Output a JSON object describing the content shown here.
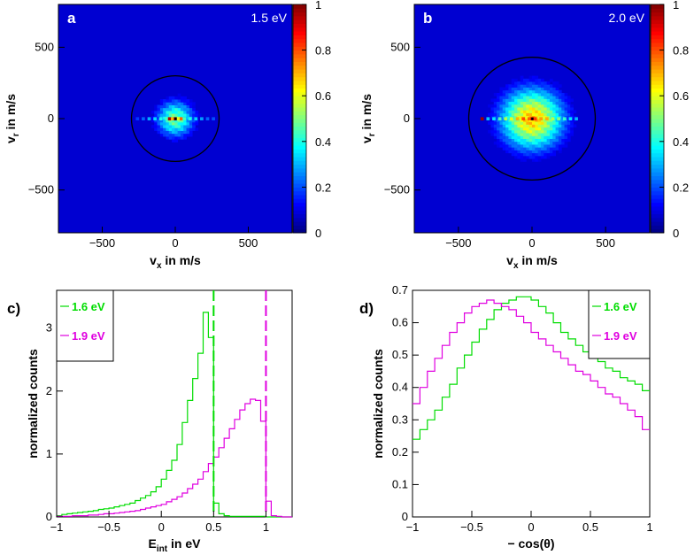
{
  "chart_data": [
    {
      "id": "a",
      "type": "heatmap",
      "panel_label": "a",
      "energy_label": "1.5 eV",
      "xlabel": "v",
      "xlabel_sub": "x",
      "xlabel_unit": " in m/s",
      "ylabel": "v",
      "ylabel_sub": "r",
      "ylabel_unit": " in m/s",
      "xlim": [
        -800,
        800
      ],
      "ylim": [
        -800,
        800
      ],
      "xticks": [
        {
          "v": -500,
          "label": "−500"
        },
        {
          "v": 0,
          "label": "0"
        },
        {
          "v": 500,
          "label": "500"
        }
      ],
      "yticks": [
        {
          "v": -500,
          "label": "−500"
        },
        {
          "v": 0,
          "label": "0"
        },
        {
          "v": 500,
          "label": "500"
        }
      ],
      "colorbar": {
        "min": 0,
        "max": 1,
        "ticks": [
          {
            "v": 0,
            "label": "0"
          },
          {
            "v": 0.2,
            "label": "0.2"
          },
          {
            "v": 0.4,
            "label": "0.4"
          },
          {
            "v": 0.6,
            "label": "0.6"
          },
          {
            "v": 0.8,
            "label": "0.8"
          },
          {
            "v": 1,
            "label": "1"
          }
        ]
      },
      "circle_radius": 300,
      "blob": {
        "sigma": 90,
        "peak": 0.48
      },
      "streak": [
        [
          -260,
          0.18
        ],
        [
          -220,
          0.22
        ],
        [
          -180,
          0.3
        ],
        [
          -140,
          0.34
        ],
        [
          -100,
          0.4
        ],
        [
          -60,
          0.45
        ],
        [
          -40,
          0.95
        ],
        [
          -20,
          0.7
        ],
        [
          0,
          1.0
        ],
        [
          20,
          0.6
        ],
        [
          40,
          0.78
        ],
        [
          60,
          0.45
        ],
        [
          100,
          0.4
        ],
        [
          140,
          0.33
        ],
        [
          180,
          0.28
        ],
        [
          220,
          0.22
        ],
        [
          260,
          0.2
        ]
      ]
    },
    {
      "id": "b",
      "type": "heatmap",
      "panel_label": "b",
      "energy_label": "2.0 eV",
      "xlabel": "v",
      "xlabel_sub": "x",
      "xlabel_unit": " in m/s",
      "ylabel": "v",
      "ylabel_sub": "r",
      "ylabel_unit": " in m/s",
      "xlim": [
        -800,
        800
      ],
      "ylim": [
        -800,
        800
      ],
      "xticks": [
        {
          "v": -500,
          "label": "−500"
        },
        {
          "v": 0,
          "label": "0"
        },
        {
          "v": 500,
          "label": "500"
        }
      ],
      "yticks": [
        {
          "v": -500,
          "label": "−500"
        },
        {
          "v": 0,
          "label": "0"
        },
        {
          "v": 500,
          "label": "500"
        }
      ],
      "colorbar": {
        "min": 0,
        "max": 1,
        "ticks": [
          {
            "v": 0,
            "label": "0"
          },
          {
            "v": 0.2,
            "label": "0.2"
          },
          {
            "v": 0.4,
            "label": "0.4"
          },
          {
            "v": 0.6,
            "label": "0.6"
          },
          {
            "v": 0.8,
            "label": "0.8"
          },
          {
            "v": 1,
            "label": "1"
          }
        ]
      },
      "circle_radius": 430,
      "blob": {
        "sigma": 150,
        "peak": 0.68
      },
      "streak": [
        [
          -340,
          0.97
        ],
        [
          -300,
          0.32
        ],
        [
          -260,
          0.35
        ],
        [
          -220,
          0.45
        ],
        [
          -180,
          0.55
        ],
        [
          -140,
          0.6
        ],
        [
          -100,
          0.7
        ],
        [
          -60,
          0.8
        ],
        [
          -20,
          0.78
        ],
        [
          0,
          0.9
        ],
        [
          20,
          0.82
        ],
        [
          60,
          0.72
        ],
        [
          100,
          0.7
        ],
        [
          140,
          0.55
        ],
        [
          180,
          0.5
        ],
        [
          220,
          0.42
        ],
        [
          260,
          0.35
        ],
        [
          300,
          0.3
        ]
      ]
    },
    {
      "id": "c",
      "type": "line",
      "panel_label": "c)",
      "xlabel": "E",
      "xlabel_sub": "int",
      "xlabel_unit": " in eV",
      "ylabel": "normalized counts",
      "xlim": [
        -1,
        1.25
      ],
      "ylim": [
        0,
        3.6
      ],
      "xticks": [
        {
          "v": -1,
          "label": "−1"
        },
        {
          "v": -0.5,
          "label": "−0.5"
        },
        {
          "v": 0,
          "label": "0"
        },
        {
          "v": 0.5,
          "label": "0.5"
        },
        {
          "v": 1,
          "label": "1"
        }
      ],
      "yticks": [
        {
          "v": 0,
          "label": "0"
        },
        {
          "v": 1,
          "label": "1"
        },
        {
          "v": 2,
          "label": "2"
        },
        {
          "v": 3,
          "label": "3"
        }
      ],
      "legend_position": "top-left",
      "series": [
        {
          "name": "1.6 eV",
          "color": "#00dd00",
          "step": 0.05,
          "x": [
            -1.0,
            -0.95,
            -0.9,
            -0.85,
            -0.8,
            -0.75,
            -0.7,
            -0.65,
            -0.6,
            -0.55,
            -0.5,
            -0.45,
            -0.4,
            -0.35,
            -0.3,
            -0.25,
            -0.2,
            -0.15,
            -0.1,
            -0.05,
            0.0,
            0.05,
            0.1,
            0.15,
            0.2,
            0.25,
            0.3,
            0.35,
            0.4,
            0.45,
            0.5,
            0.55,
            0.6,
            0.65,
            0.7,
            0.75,
            0.8,
            0.85,
            0.9,
            0.95,
            1.0,
            1.05,
            1.1,
            1.15,
            1.2
          ],
          "y": [
            0.02,
            0.04,
            0.05,
            0.06,
            0.07,
            0.08,
            0.09,
            0.1,
            0.12,
            0.13,
            0.14,
            0.16,
            0.18,
            0.2,
            0.22,
            0.26,
            0.3,
            0.34,
            0.4,
            0.48,
            0.6,
            0.74,
            0.9,
            1.15,
            1.5,
            1.85,
            2.2,
            2.6,
            3.25,
            2.85,
            0.22,
            0.05,
            0.02,
            0.01,
            0.01,
            0.01,
            0.01,
            0.01,
            0.01,
            0.01,
            0.0,
            0.0,
            0.0,
            0.0,
            0.0
          ]
        },
        {
          "name": "1.9 eV",
          "color": "#e000e0",
          "step": 0.05,
          "x": [
            -1.0,
            -0.95,
            -0.9,
            -0.85,
            -0.8,
            -0.75,
            -0.7,
            -0.65,
            -0.6,
            -0.55,
            -0.5,
            -0.45,
            -0.4,
            -0.35,
            -0.3,
            -0.25,
            -0.2,
            -0.15,
            -0.1,
            -0.05,
            0.0,
            0.05,
            0.1,
            0.15,
            0.2,
            0.25,
            0.3,
            0.35,
            0.4,
            0.45,
            0.5,
            0.55,
            0.6,
            0.65,
            0.7,
            0.75,
            0.8,
            0.85,
            0.9,
            0.95,
            1.0,
            1.05,
            1.1,
            1.15,
            1.2
          ],
          "y": [
            0.01,
            0.01,
            0.01,
            0.02,
            0.02,
            0.02,
            0.03,
            0.03,
            0.04,
            0.05,
            0.05,
            0.06,
            0.07,
            0.08,
            0.09,
            0.1,
            0.12,
            0.14,
            0.16,
            0.18,
            0.2,
            0.24,
            0.28,
            0.32,
            0.38,
            0.45,
            0.52,
            0.6,
            0.72,
            0.85,
            0.95,
            1.1,
            1.25,
            1.4,
            1.55,
            1.7,
            1.8,
            1.87,
            1.85,
            1.52,
            0.25,
            0.02,
            0.01,
            0.0,
            0.0
          ]
        }
      ],
      "vlines": [
        {
          "x": 0.5,
          "color": "#00dd00"
        },
        {
          "x": 1.0,
          "color": "#e000e0"
        }
      ]
    },
    {
      "id": "d",
      "type": "line",
      "panel_label": "d)",
      "xlabel": "− cos(θ)",
      "ylabel": "normalized counts",
      "xlim": [
        -1,
        1
      ],
      "ylim": [
        0,
        0.7
      ],
      "xticks": [
        {
          "v": -1,
          "label": "−1"
        },
        {
          "v": -0.5,
          "label": "−0.5"
        },
        {
          "v": 0,
          "label": "0"
        },
        {
          "v": 0.5,
          "label": "0.5"
        },
        {
          "v": 1,
          "label": "1"
        }
      ],
      "yticks": [
        {
          "v": 0,
          "label": "0"
        },
        {
          "v": 0.1,
          "label": "0.1"
        },
        {
          "v": 0.2,
          "label": "0.2"
        },
        {
          "v": 0.3,
          "label": "0.3"
        },
        {
          "v": 0.4,
          "label": "0.4"
        },
        {
          "v": 0.5,
          "label": "0.5"
        },
        {
          "v": 0.6,
          "label": "0.6"
        },
        {
          "v": 0.7,
          "label": "0.7"
        }
      ],
      "legend_position": "top-right",
      "series": [
        {
          "name": "1.6 eV",
          "color": "#00dd00",
          "step": 0.0625,
          "x": [
            -1.0,
            -0.9375,
            -0.875,
            -0.8125,
            -0.75,
            -0.6875,
            -0.625,
            -0.5625,
            -0.5,
            -0.4375,
            -0.375,
            -0.3125,
            -0.25,
            -0.1875,
            -0.125,
            -0.0625,
            0.0,
            0.0625,
            0.125,
            0.1875,
            0.25,
            0.3125,
            0.375,
            0.4375,
            0.5,
            0.5625,
            0.625,
            0.6875,
            0.75,
            0.8125,
            0.875,
            0.9375
          ],
          "y": [
            0.24,
            0.27,
            0.3,
            0.33,
            0.37,
            0.41,
            0.46,
            0.5,
            0.54,
            0.58,
            0.61,
            0.64,
            0.66,
            0.67,
            0.68,
            0.68,
            0.67,
            0.65,
            0.63,
            0.6,
            0.57,
            0.55,
            0.53,
            0.51,
            0.5,
            0.48,
            0.46,
            0.45,
            0.43,
            0.42,
            0.41,
            0.39
          ]
        },
        {
          "name": "1.9 eV",
          "color": "#e000e0",
          "step": 0.0625,
          "x": [
            -1.0,
            -0.9375,
            -0.875,
            -0.8125,
            -0.75,
            -0.6875,
            -0.625,
            -0.5625,
            -0.5,
            -0.4375,
            -0.375,
            -0.3125,
            -0.25,
            -0.1875,
            -0.125,
            -0.0625,
            0.0,
            0.0625,
            0.125,
            0.1875,
            0.25,
            0.3125,
            0.375,
            0.4375,
            0.5,
            0.5625,
            0.625,
            0.6875,
            0.75,
            0.8125,
            0.875,
            0.9375
          ],
          "y": [
            0.35,
            0.4,
            0.45,
            0.49,
            0.53,
            0.57,
            0.6,
            0.63,
            0.65,
            0.66,
            0.67,
            0.66,
            0.65,
            0.64,
            0.62,
            0.6,
            0.57,
            0.55,
            0.53,
            0.51,
            0.49,
            0.47,
            0.45,
            0.44,
            0.42,
            0.4,
            0.38,
            0.37,
            0.35,
            0.33,
            0.31,
            0.27
          ]
        }
      ]
    }
  ]
}
